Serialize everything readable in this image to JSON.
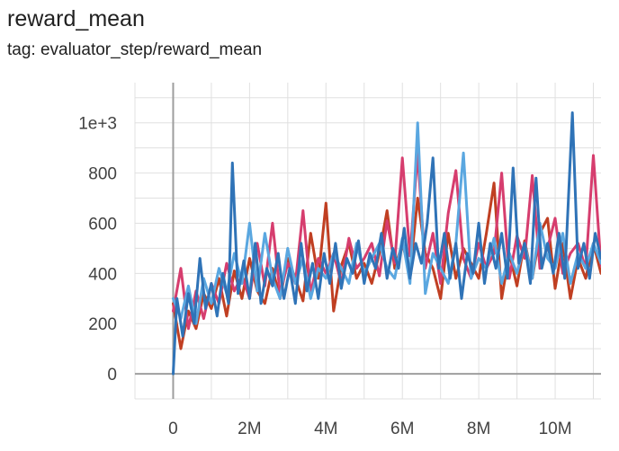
{
  "title": "reward_mean",
  "subtitle": "tag: evaluator_step/reward_mean",
  "chart_data": {
    "type": "line",
    "xlim": [
      -1000000,
      11200000
    ],
    "ylim": [
      -100,
      1160
    ],
    "x_ticks": [
      0,
      2000000,
      4000000,
      6000000,
      8000000,
      10000000
    ],
    "x_tick_labels": [
      "0",
      "2M",
      "4M",
      "6M",
      "8M",
      "10M"
    ],
    "y_ticks": [
      0,
      200,
      400,
      600,
      800,
      1000
    ],
    "y_tick_labels": [
      "0",
      "200",
      "400",
      "600",
      "800",
      "1e+3"
    ],
    "grid": true,
    "series": [
      {
        "color": "#c03f22",
        "points": [
          [
            0,
            280
          ],
          [
            200000,
            100
          ],
          [
            400000,
            250
          ],
          [
            600000,
            180
          ],
          [
            800000,
            320
          ],
          [
            1000000,
            260
          ],
          [
            1200000,
            380
          ],
          [
            1400000,
            230
          ],
          [
            1600000,
            410
          ],
          [
            1800000,
            300
          ],
          [
            2000000,
            460
          ],
          [
            2200000,
            330
          ],
          [
            2400000,
            280
          ],
          [
            2600000,
            420
          ],
          [
            2800000,
            300
          ],
          [
            3000000,
            460
          ],
          [
            3200000,
            380
          ],
          [
            3400000,
            290
          ],
          [
            3600000,
            560
          ],
          [
            3800000,
            380
          ],
          [
            4000000,
            680
          ],
          [
            4200000,
            250
          ],
          [
            4400000,
            430
          ],
          [
            4600000,
            520
          ],
          [
            4800000,
            380
          ],
          [
            5000000,
            440
          ],
          [
            5200000,
            360
          ],
          [
            5400000,
            480
          ],
          [
            5600000,
            650
          ],
          [
            5800000,
            420
          ],
          [
            6000000,
            520
          ],
          [
            6200000,
            400
          ],
          [
            6400000,
            700
          ],
          [
            6600000,
            480
          ],
          [
            6800000,
            420
          ],
          [
            7000000,
            300
          ],
          [
            7200000,
            560
          ],
          [
            7400000,
            380
          ],
          [
            7600000,
            500
          ],
          [
            7800000,
            440
          ],
          [
            8000000,
            380
          ],
          [
            8200000,
            560
          ],
          [
            8400000,
            760
          ],
          [
            8600000,
            300
          ],
          [
            8800000,
            480
          ],
          [
            9000000,
            350
          ],
          [
            9200000,
            530
          ],
          [
            9400000,
            380
          ],
          [
            9600000,
            560
          ],
          [
            9800000,
            620
          ],
          [
            10000000,
            340
          ],
          [
            10200000,
            520
          ],
          [
            10400000,
            300
          ],
          [
            10600000,
            460
          ],
          [
            10800000,
            380
          ],
          [
            11000000,
            520
          ],
          [
            11200000,
            400
          ]
        ]
      },
      {
        "color": "#d63d6e",
        "points": [
          [
            0,
            250
          ],
          [
            200000,
            420
          ],
          [
            400000,
            180
          ],
          [
            600000,
            330
          ],
          [
            800000,
            220
          ],
          [
            1000000,
            360
          ],
          [
            1200000,
            280
          ],
          [
            1400000,
            440
          ],
          [
            1600000,
            330
          ],
          [
            1800000,
            390
          ],
          [
            2000000,
            300
          ],
          [
            2200000,
            520
          ],
          [
            2400000,
            350
          ],
          [
            2600000,
            600
          ],
          [
            2800000,
            320
          ],
          [
            3000000,
            440
          ],
          [
            3200000,
            360
          ],
          [
            3400000,
            650
          ],
          [
            3600000,
            320
          ],
          [
            3800000,
            460
          ],
          [
            4000000,
            400
          ],
          [
            4200000,
            480
          ],
          [
            4400000,
            360
          ],
          [
            4600000,
            540
          ],
          [
            4800000,
            420
          ],
          [
            5000000,
            460
          ],
          [
            5200000,
            520
          ],
          [
            5400000,
            390
          ],
          [
            5600000,
            610
          ],
          [
            5800000,
            440
          ],
          [
            6000000,
            860
          ],
          [
            6200000,
            470
          ],
          [
            6400000,
            880
          ],
          [
            6600000,
            420
          ],
          [
            6800000,
            560
          ],
          [
            7000000,
            360
          ],
          [
            7200000,
            640
          ],
          [
            7400000,
            810
          ],
          [
            7600000,
            460
          ],
          [
            7800000,
            380
          ],
          [
            8000000,
            520
          ],
          [
            8200000,
            420
          ],
          [
            8400000,
            480
          ],
          [
            8600000,
            800
          ],
          [
            8800000,
            380
          ],
          [
            9000000,
            550
          ],
          [
            9200000,
            460
          ],
          [
            9400000,
            790
          ],
          [
            9600000,
            420
          ],
          [
            9800000,
            500
          ],
          [
            10000000,
            620
          ],
          [
            10200000,
            400
          ],
          [
            10400000,
            480
          ],
          [
            10600000,
            520
          ],
          [
            10800000,
            420
          ],
          [
            11000000,
            870
          ],
          [
            11200000,
            430
          ]
        ]
      },
      {
        "color": "#5aa7e0",
        "points": [
          [
            0,
            300
          ],
          [
            200000,
            220
          ],
          [
            400000,
            350
          ],
          [
            600000,
            200
          ],
          [
            800000,
            380
          ],
          [
            1000000,
            280
          ],
          [
            1200000,
            420
          ],
          [
            1400000,
            320
          ],
          [
            1600000,
            480
          ],
          [
            1800000,
            360
          ],
          [
            2000000,
            600
          ],
          [
            2200000,
            330
          ],
          [
            2400000,
            560
          ],
          [
            2600000,
            380
          ],
          [
            2800000,
            300
          ],
          [
            3000000,
            500
          ],
          [
            3200000,
            360
          ],
          [
            3400000,
            460
          ],
          [
            3600000,
            300
          ],
          [
            3800000,
            420
          ],
          [
            4000000,
            380
          ],
          [
            4200000,
            480
          ],
          [
            4400000,
            420
          ],
          [
            4600000,
            360
          ],
          [
            4800000,
            520
          ],
          [
            5000000,
            400
          ],
          [
            5200000,
            460
          ],
          [
            5400000,
            520
          ],
          [
            5600000,
            420
          ],
          [
            5800000,
            380
          ],
          [
            6000000,
            540
          ],
          [
            6200000,
            360
          ],
          [
            6400000,
            1000
          ],
          [
            6600000,
            320
          ],
          [
            6800000,
            480
          ],
          [
            7000000,
            420
          ],
          [
            7200000,
            360
          ],
          [
            7400000,
            520
          ],
          [
            7600000,
            880
          ],
          [
            7800000,
            380
          ],
          [
            8000000,
            460
          ],
          [
            8200000,
            420
          ],
          [
            8400000,
            540
          ],
          [
            8600000,
            360
          ],
          [
            8800000,
            480
          ],
          [
            9000000,
            400
          ],
          [
            9200000,
            520
          ],
          [
            9400000,
            380
          ],
          [
            9600000,
            600
          ],
          [
            9800000,
            460
          ],
          [
            10000000,
            420
          ],
          [
            10200000,
            560
          ],
          [
            10400000,
            360
          ],
          [
            10600000,
            480
          ],
          [
            10800000,
            420
          ],
          [
            11000000,
            520
          ],
          [
            11200000,
            440
          ]
        ]
      },
      {
        "color": "#2f73b7",
        "points": [
          [
            0,
            0
          ],
          [
            100000,
            300
          ],
          [
            250000,
            150
          ],
          [
            400000,
            320
          ],
          [
            550000,
            200
          ],
          [
            700000,
            460
          ],
          [
            850000,
            260
          ],
          [
            1000000,
            360
          ],
          [
            1150000,
            230
          ],
          [
            1300000,
            400
          ],
          [
            1450000,
            280
          ],
          [
            1550000,
            840
          ],
          [
            1700000,
            320
          ],
          [
            1850000,
            450
          ],
          [
            2000000,
            300
          ],
          [
            2150000,
            520
          ],
          [
            2300000,
            280
          ],
          [
            2450000,
            420
          ],
          [
            2600000,
            350
          ],
          [
            2750000,
            480
          ],
          [
            2900000,
            300
          ],
          [
            3050000,
            420
          ],
          [
            3200000,
            280
          ],
          [
            3350000,
            520
          ],
          [
            3500000,
            330
          ],
          [
            3650000,
            440
          ],
          [
            3800000,
            300
          ],
          [
            3950000,
            480
          ],
          [
            4100000,
            360
          ],
          [
            4250000,
            520
          ],
          [
            4400000,
            340
          ],
          [
            4550000,
            460
          ],
          [
            4700000,
            400
          ],
          [
            4850000,
            530
          ],
          [
            5000000,
            360
          ],
          [
            5150000,
            480
          ],
          [
            5300000,
            420
          ],
          [
            5450000,
            560
          ],
          [
            5600000,
            380
          ],
          [
            5750000,
            500
          ],
          [
            5900000,
            420
          ],
          [
            6050000,
            580
          ],
          [
            6200000,
            380
          ],
          [
            6350000,
            520
          ],
          [
            6500000,
            440
          ],
          [
            6650000,
            600
          ],
          [
            6800000,
            860
          ],
          [
            6950000,
            420
          ],
          [
            7100000,
            560
          ],
          [
            7250000,
            380
          ],
          [
            7400000,
            520
          ],
          [
            7550000,
            300
          ],
          [
            7700000,
            480
          ],
          [
            7850000,
            400
          ],
          [
            8000000,
            600
          ],
          [
            8150000,
            360
          ],
          [
            8300000,
            520
          ],
          [
            8450000,
            420
          ],
          [
            8600000,
            560
          ],
          [
            8750000,
            380
          ],
          [
            8900000,
            820
          ],
          [
            9050000,
            440
          ],
          [
            9200000,
            520
          ],
          [
            9350000,
            360
          ],
          [
            9500000,
            780
          ],
          [
            9650000,
            420
          ],
          [
            9800000,
            520
          ],
          [
            9950000,
            400
          ],
          [
            10100000,
            560
          ],
          [
            10250000,
            380
          ],
          [
            10450000,
            1040
          ],
          [
            10600000,
            420
          ],
          [
            10750000,
            520
          ],
          [
            10900000,
            380
          ],
          [
            11050000,
            560
          ],
          [
            11200000,
            460
          ]
        ]
      }
    ]
  }
}
